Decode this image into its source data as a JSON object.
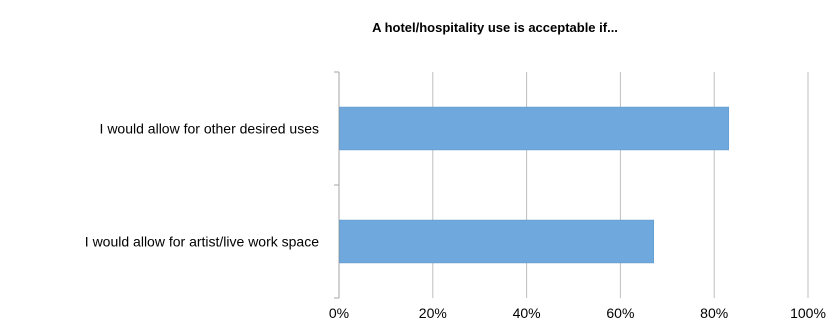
{
  "chart_data": {
    "type": "bar",
    "orientation": "horizontal",
    "title": "A hotel/hospitality use is acceptable if...",
    "categories": [
      "I would allow for other desired uses",
      "I would allow for artist/live work space"
    ],
    "values": [
      83,
      67
    ],
    "xlim": [
      0,
      100
    ],
    "x_ticks": [
      "0%",
      "20%",
      "40%",
      "60%",
      "80%",
      "100%"
    ],
    "xlabel": "",
    "ylabel": "",
    "grid": true,
    "legend": "none",
    "colors": {
      "bar": "#6fa8dc",
      "bar_edge": "#5b95c9",
      "grid": "#bfbfbf",
      "axis": "#a6a6a6"
    }
  }
}
